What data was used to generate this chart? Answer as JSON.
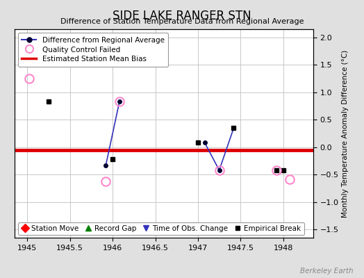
{
  "title": "SIDE LAKE RANGER STN",
  "subtitle": "Difference of Station Temperature Data from Regional Average",
  "ylabel": "Monthly Temperature Anomaly Difference (°C)",
  "xlim": [
    1944.85,
    1948.35
  ],
  "ylim": [
    -1.65,
    2.15
  ],
  "yticks": [
    -1.5,
    -1.0,
    -0.5,
    0.0,
    0.5,
    1.0,
    1.5,
    2.0
  ],
  "xticks": [
    1945,
    1945.5,
    1946,
    1946.5,
    1947,
    1947.5,
    1948
  ],
  "xticklabels": [
    "1945",
    "1945.5",
    "1946",
    "1946.5",
    "1947",
    "1947.5",
    "1948"
  ],
  "bias_line_y": -0.05,
  "line_segments": [
    {
      "x": [
        1945.92,
        1946.08
      ],
      "y": [
        -0.33,
        0.83
      ]
    },
    {
      "x": [
        1947.08,
        1947.25
      ],
      "y": [
        0.08,
        -0.42
      ]
    },
    {
      "x": [
        1947.25,
        1947.42
      ],
      "y": [
        -0.42,
        0.35
      ]
    }
  ],
  "line_dots": [
    [
      1945.92,
      -0.33
    ],
    [
      1946.08,
      0.83
    ],
    [
      1947.08,
      0.08
    ],
    [
      1947.25,
      -0.42
    ],
    [
      1947.42,
      0.35
    ]
  ],
  "qc_failed_points": [
    [
      1945.02,
      1.25
    ],
    [
      1945.92,
      -0.62
    ],
    [
      1946.08,
      0.83
    ],
    [
      1947.25,
      -0.42
    ],
    [
      1947.92,
      -0.42
    ],
    [
      1948.08,
      -0.58
    ]
  ],
  "empirical_break_points": [
    [
      1945.25,
      0.83
    ],
    [
      1946.0,
      -0.22
    ],
    [
      1947.0,
      0.08
    ],
    [
      1947.42,
      0.35
    ],
    [
      1947.92,
      -0.42
    ],
    [
      1948.0,
      -0.42
    ]
  ],
  "line_color": "#3333bb",
  "dot_color": "#000033",
  "qc_color": "#ff88cc",
  "bias_color": "#dd0000",
  "background_color": "#e0e0e0",
  "plot_bg_color": "#ffffff",
  "grid_color": "#c8c8c8",
  "watermark": "Berkeley Earth"
}
